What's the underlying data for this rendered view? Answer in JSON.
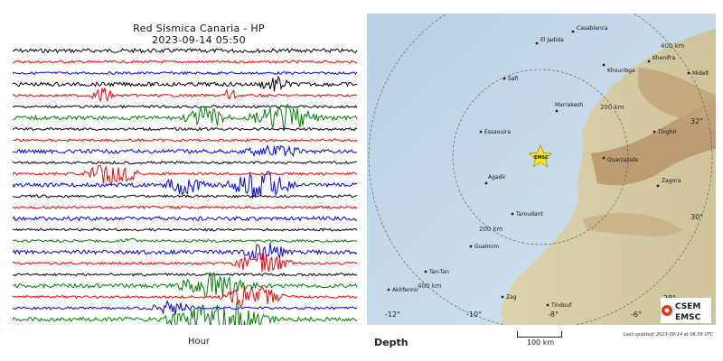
{
  "seismogram": {
    "title": "Red Sismica Canaria - HP",
    "timestamp": "2023-09-14 05:50",
    "xlabel": "Hour",
    "colors": {
      "black": "#000000",
      "red": "#ff0000",
      "blue": "#0000ff",
      "green": "#008000"
    },
    "traces": [
      "black",
      "red",
      "blue",
      "black",
      "red",
      "black",
      "green",
      "black",
      "red",
      "blue",
      "black",
      "red",
      "blue",
      "black",
      "red",
      "blue",
      "black",
      "green",
      "blue",
      "red",
      "black",
      "green",
      "red",
      "blue",
      "green"
    ]
  },
  "map": {
    "cities": [
      "Casablanca",
      "El Jadida",
      "Khouribga",
      "Khenifra",
      "Midelt",
      "Safi",
      "Marrakesh",
      "Essaouira",
      "Tinghir",
      "Ouarzazate",
      "Agadir",
      "Zagora",
      "Taroudant",
      "Guelmim",
      "Tan-Tan",
      "Akhfennir",
      "Zag",
      "Tindouf"
    ],
    "distance_rings": [
      "400 km",
      "200 km",
      "200 km",
      "400 km"
    ],
    "coordinates": [
      "32°",
      "30°",
      "28°",
      "-12°",
      "-10°",
      "-8°",
      "-6°"
    ],
    "epicenter_label": "EMSC",
    "colors": {
      "sea": "#c8dceb",
      "land_low": "#d8cfa6",
      "mountains": "#b89467",
      "epicenter": "#ffea00"
    }
  },
  "footer": {
    "depth_label": "Depth",
    "scale_label": "100 km",
    "last_updated": "Last updated: 2023-09-14 at 06:59 UTC"
  },
  "logo": {
    "line1": "CSEM",
    "line2": "EMSC"
  }
}
